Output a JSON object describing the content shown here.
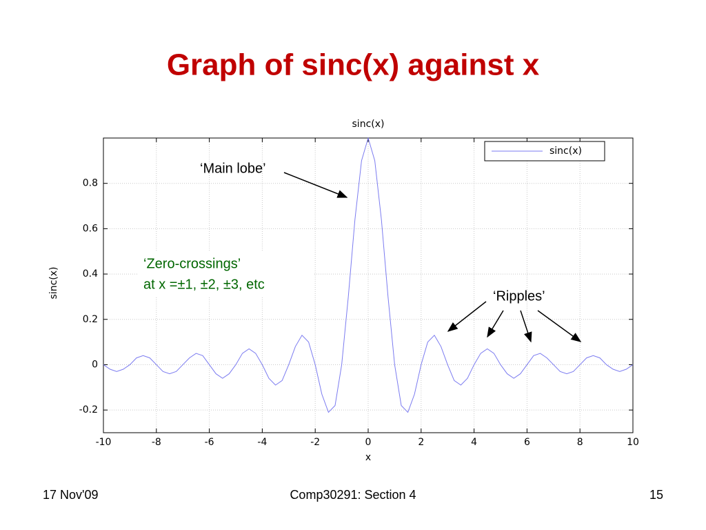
{
  "slide": {
    "title": "Graph of sinc(x) against x",
    "footer": {
      "date": "17 Nov'09",
      "course": "Comp30291: Section 4",
      "page": "15"
    }
  },
  "chart_data": {
    "type": "line",
    "title": "sinc(x)",
    "x_label": "x",
    "y_label": "sinc(x)",
    "x": [
      -10,
      -9.75,
      -9.5,
      -9.25,
      -9,
      -8.75,
      -8.5,
      -8.25,
      -8,
      -7.75,
      -7.5,
      -7.25,
      -7,
      -6.75,
      -6.5,
      -6.25,
      -6,
      -5.75,
      -5.5,
      -5.25,
      -5,
      -4.75,
      -4.5,
      -4.25,
      -4,
      -3.75,
      -3.5,
      -3.25,
      -3,
      -2.75,
      -2.5,
      -2.25,
      -2,
      -1.75,
      -1.5,
      -1.25,
      -1,
      -0.75,
      -0.5,
      -0.25,
      0,
      0.25,
      0.5,
      0.75,
      1,
      1.25,
      1.5,
      1.75,
      2,
      2.25,
      2.5,
      2.75,
      3,
      3.25,
      3.5,
      3.75,
      4,
      4.25,
      4.5,
      4.75,
      5,
      5.25,
      5.5,
      5.75,
      6,
      6.25,
      6.5,
      6.75,
      7,
      7.25,
      7.5,
      7.75,
      8,
      8.25,
      8.5,
      8.75,
      9,
      9.25,
      9.5,
      9.75,
      10
    ],
    "series": [
      {
        "name": "sinc(x)",
        "color": "#7b7bf0",
        "values": [
          0,
          -0.02,
          -0.03,
          -0.02,
          0,
          0.03,
          0.04,
          0.03,
          0,
          -0.03,
          -0.04,
          -0.03,
          0,
          0.03,
          0.05,
          0.04,
          0,
          -0.04,
          -0.06,
          -0.04,
          0,
          0.05,
          0.07,
          0.05,
          0,
          -0.06,
          -0.09,
          -0.07,
          0,
          0.08,
          0.13,
          0.1,
          0,
          -0.13,
          -0.21,
          -0.18,
          0,
          0.3,
          0.64,
          0.9,
          1,
          0.9,
          0.64,
          0.3,
          0,
          -0.18,
          -0.21,
          -0.13,
          0,
          0.1,
          0.13,
          0.08,
          0,
          -0.07,
          -0.09,
          -0.06,
          0,
          0.05,
          0.07,
          0.05,
          0,
          -0.04,
          -0.06,
          -0.04,
          0,
          0.04,
          0.05,
          0.03,
          0,
          -0.03,
          -0.04,
          -0.03,
          0,
          0.03,
          0.04,
          0.03,
          0,
          -0.02,
          -0.03,
          -0.02,
          0
        ]
      }
    ],
    "xlim": [
      -10,
      10
    ],
    "ylim": [
      -0.3,
      1
    ],
    "xticks": [
      -10,
      -8,
      -6,
      -4,
      -2,
      0,
      2,
      4,
      6,
      8,
      10
    ],
    "yticks": [
      -0.2,
      0,
      0.2,
      0.4,
      0.6,
      0.8
    ],
    "grid": true,
    "legend": "upper right",
    "annotations": [
      {
        "text": "‘Main lobe’"
      },
      {
        "text": "‘Zero-crossings’"
      },
      {
        "text": "at x =±1, ±2, ±3, etc"
      },
      {
        "text": "‘Ripples’"
      }
    ]
  }
}
